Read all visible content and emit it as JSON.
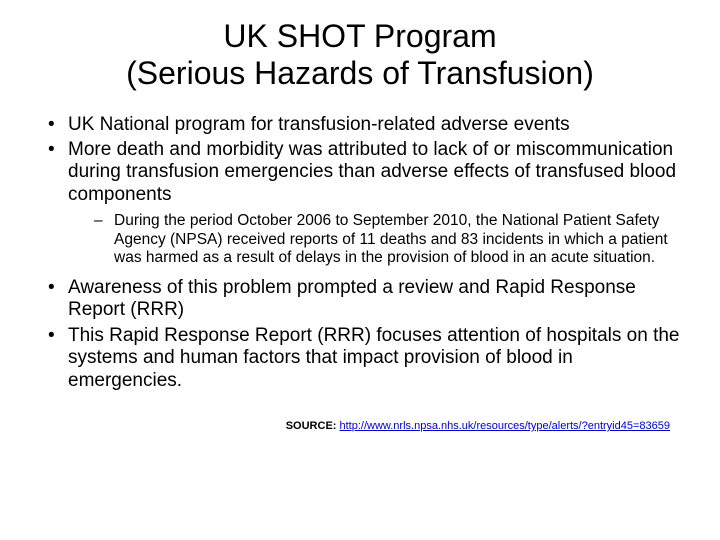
{
  "title": "UK SHOT Program\n(Serious Hazards of Transfusion)",
  "bullets": {
    "b1": "UK National program for transfusion-related adverse events",
    "b2": "More death and morbidity was attributed to lack of or miscommunication during transfusion emergencies than adverse effects of transfused blood components",
    "b2_sub1": "During the period October 2006 to September 2010, the National Patient Safety Agency (NPSA) received reports of 11 deaths and 83 incidents in which a patient was harmed as a result of delays in the provision of blood in an acute situation.",
    "b3": "Awareness of this problem prompted a review and Rapid Response Report (RRR)",
    "b4": "This Rapid Response Report (RRR) focuses attention of hospitals on the systems and human factors that impact provision of blood in emergencies."
  },
  "source": {
    "label": "SOURCE: ",
    "link_text": "http://www.nrls.npsa.nhs.uk/resources/type/alerts/?entryid45=83659"
  },
  "colors": {
    "background": "#ffffff",
    "text": "#000000",
    "link": "#0000cc"
  },
  "typography": {
    "title_fontsize": 32,
    "bullet_fontsize": 19,
    "subbullet_fontsize": 15.5,
    "source_fontsize": 11,
    "font_family": "Arial"
  }
}
